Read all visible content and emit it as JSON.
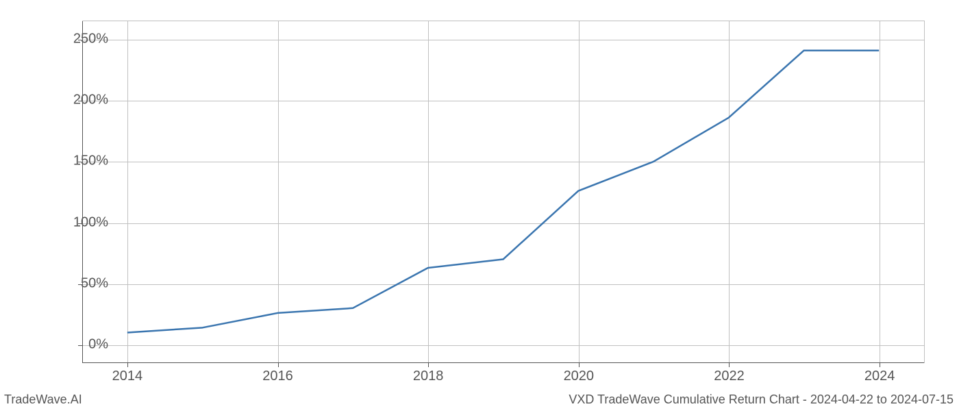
{
  "chart": {
    "type": "line",
    "x_values": [
      2014,
      2015,
      2016,
      2017,
      2018,
      2019,
      2020,
      2021,
      2022,
      2023,
      2024
    ],
    "y_values": [
      10,
      14,
      26,
      30,
      63,
      70,
      126,
      150,
      186,
      241,
      241
    ],
    "line_color": "#3a75af",
    "line_width": 2.5,
    "background_color": "#ffffff",
    "grid_color": "#c0c0c0",
    "axis_color": "#555555",
    "xlim": [
      2013.4,
      2024.6
    ],
    "ylim": [
      -15,
      265
    ],
    "x_ticks": [
      2014,
      2016,
      2018,
      2020,
      2022,
      2024
    ],
    "x_tick_labels": [
      "2014",
      "2016",
      "2018",
      "2020",
      "2022",
      "2024"
    ],
    "y_ticks": [
      0,
      50,
      100,
      150,
      200,
      250
    ],
    "y_tick_labels": [
      "0%",
      "50%",
      "100%",
      "150%",
      "200%",
      "250%"
    ],
    "tick_fontsize": 20,
    "tick_color": "#555555"
  },
  "footer": {
    "left": "TradeWave.AI",
    "right": "VXD TradeWave Cumulative Return Chart - 2024-04-22 to 2024-07-15",
    "fontsize": 18,
    "color": "#555555"
  }
}
